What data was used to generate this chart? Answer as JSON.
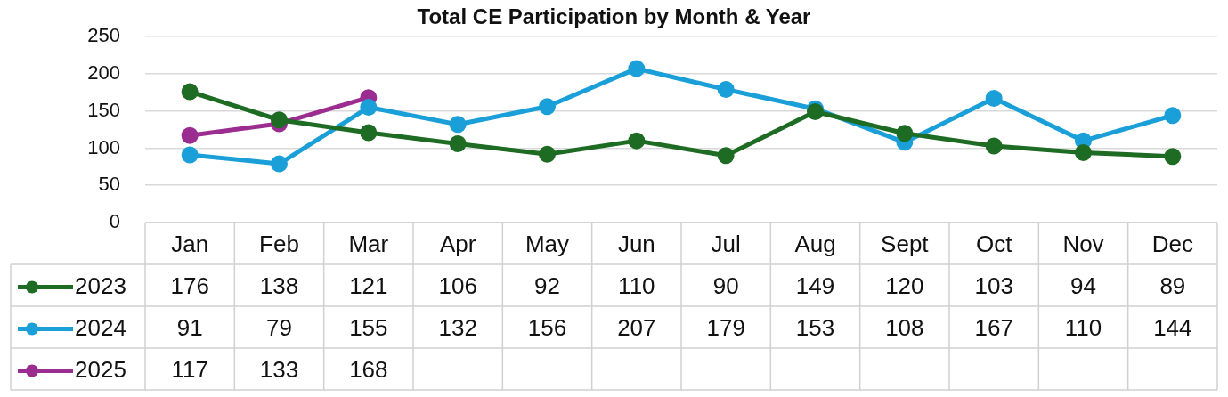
{
  "chart_data": {
    "type": "line",
    "title": "Total CE Participation by Month & Year",
    "categories": [
      "Jan",
      "Feb",
      "Mar",
      "Apr",
      "May",
      "Jun",
      "Jul",
      "Aug",
      "Sept",
      "Oct",
      "Nov",
      "Dec"
    ],
    "series": [
      {
        "name": "2023",
        "color": "#1e6b24",
        "values": [
          176,
          138,
          121,
          106,
          92,
          110,
          90,
          149,
          120,
          103,
          94,
          89
        ]
      },
      {
        "name": "2024",
        "color": "#1a9fd8",
        "values": [
          91,
          79,
          155,
          132,
          156,
          207,
          179,
          153,
          108,
          167,
          110,
          144
        ]
      },
      {
        "name": "2025",
        "color": "#9b2d91",
        "values": [
          117,
          133,
          168,
          null,
          null,
          null,
          null,
          null,
          null,
          null,
          null,
          null
        ]
      }
    ],
    "ylim": [
      0,
      250
    ],
    "yticks": [
      0,
      50,
      100,
      150,
      200,
      250
    ],
    "grid": "y",
    "legend": "bottom left",
    "marker": "circle",
    "data_labels": true
  }
}
